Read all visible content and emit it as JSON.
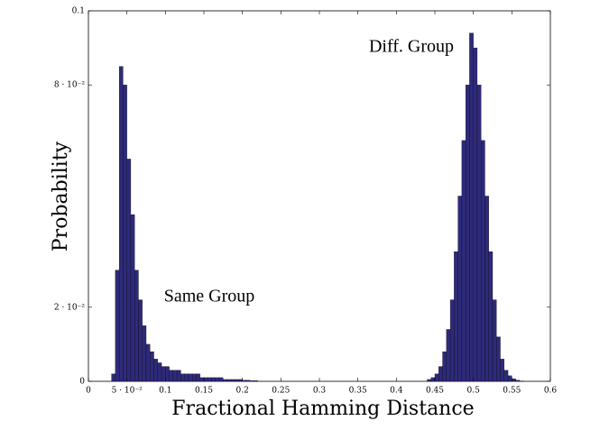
{
  "chart_data": {
    "type": "histogram",
    "x_label": "Fractional Hamming Distance",
    "y_label": "Probability",
    "annotations": [
      "Same Group",
      "Diff. Group"
    ],
    "color": "#2e2a7a",
    "edge_color": "#000000",
    "xlim": [
      0,
      0.6
    ],
    "ylim": [
      0,
      0.1
    ],
    "xticks": [
      0,
      {
        "value": 0.05,
        "label": "5 · 10⁻²"
      },
      0.1,
      0.15,
      0.2,
      0.25,
      0.3,
      0.35,
      0.4,
      0.45,
      0.5,
      0.55,
      0.6
    ],
    "yticks": [
      0,
      {
        "value": 0.02,
        "label": "2 · 10⁻²"
      },
      {
        "value": 0.08,
        "label": "8 · 10⁻²"
      },
      0.1
    ],
    "bins": [
      0.03,
      0.035,
      0.04,
      0.045,
      0.05,
      0.055,
      0.06,
      0.065,
      0.07,
      0.075,
      0.08,
      0.085,
      0.09,
      0.095,
      0.1,
      0.105,
      0.11,
      0.115,
      0.12,
      0.125,
      0.13,
      0.135,
      0.14,
      0.145,
      0.15,
      0.155,
      0.16,
      0.165,
      0.17,
      0.175,
      0.18,
      0.185,
      0.19,
      0.195,
      0.2,
      0.205,
      0.21,
      0.215,
      0.22,
      0.225,
      0.23,
      0.235,
      0.24,
      0.245,
      0.25,
      0.255,
      0.26,
      0.265,
      0.27,
      0.275,
      0.28,
      0.285,
      0.29,
      0.295,
      0.3,
      0.305,
      0.31,
      0.315,
      0.32,
      0.325,
      0.33,
      0.335,
      0.34,
      0.345,
      0.35,
      0.355,
      0.36,
      0.365,
      0.37,
      0.375,
      0.38,
      0.385,
      0.39,
      0.395,
      0.4,
      0.405,
      0.41,
      0.415,
      0.42,
      0.425,
      0.43,
      0.435,
      0.44,
      0.445,
      0.45,
      0.455,
      0.46,
      0.465,
      0.47,
      0.475,
      0.48,
      0.485,
      0.49,
      0.495,
      0.5,
      0.505,
      0.51,
      0.515,
      0.52,
      0.525,
      0.53,
      0.535,
      0.54,
      0.545,
      0.55,
      0.555,
      0.56,
      0.565,
      0.57,
      0.575,
      0.58
    ],
    "values": [
      0.002,
      0.03,
      0.085,
      0.08,
      0.06,
      0.045,
      0.03,
      0.022,
      0.015,
      0.01,
      0.008,
      0.006,
      0.005,
      0.004,
      0.004,
      0.003,
      0.003,
      0.003,
      0.002,
      0.002,
      0.002,
      0.002,
      0.002,
      0.001,
      0.001,
      0.001,
      0.001,
      0.001,
      0.001,
      0.0005,
      0.0005,
      0.0005,
      0.0005,
      0.0005,
      0.0003,
      0.0003,
      0.0002,
      0.0002,
      0,
      0,
      0,
      0,
      0,
      0,
      0,
      0,
      0,
      0,
      0,
      0,
      0,
      0,
      0,
      0,
      0,
      0,
      0,
      0,
      0,
      0,
      0,
      0,
      0,
      0,
      0,
      0,
      0,
      0,
      0,
      0,
      0,
      0,
      0,
      0,
      0,
      0,
      0,
      0,
      0,
      0,
      0,
      0,
      0.0005,
      0.001,
      0.002,
      0.004,
      0.008,
      0.014,
      0.022,
      0.035,
      0.05,
      0.065,
      0.08,
      0.094,
      0.09,
      0.08,
      0.065,
      0.05,
      0.035,
      0.022,
      0.012,
      0.006,
      0.003,
      0.0015,
      0.0007,
      0.0003,
      0.0001,
      0,
      0,
      0
    ]
  }
}
